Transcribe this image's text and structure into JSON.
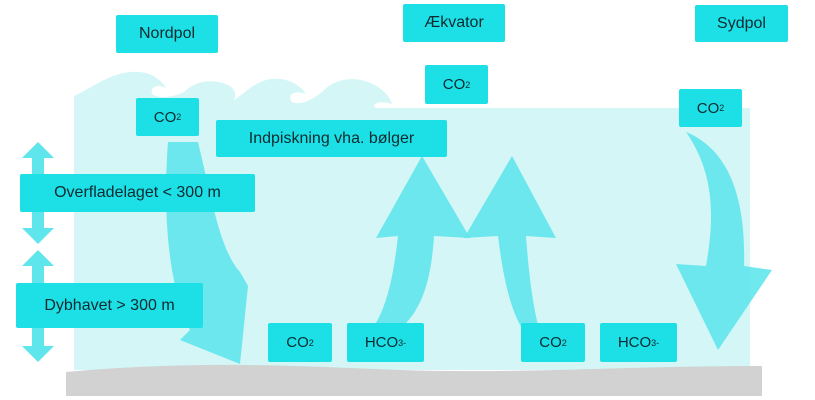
{
  "colors": {
    "water": "#d4f6f6",
    "label_bg": "#1ce0e6",
    "arrow": "#5fe6ec",
    "seabed": "#d2d2d2",
    "text": "#0d2a30"
  },
  "regions": {
    "north_pole": "Nordpol",
    "equator": "Ækvator",
    "south_pole": "Sydpol"
  },
  "labels": {
    "wave_mixing": "Indpiskning vha. bølger",
    "surface_layer": "Overfladelaget < 300 m",
    "deep_sea": "Dybhavet > 300 m"
  },
  "chemistry": {
    "co2_base": "CO",
    "co2_sub": "2",
    "hco3_base": "HCO",
    "hco3_sub": "3",
    "hco3_sup": "-"
  },
  "icons": [
    "double-arrow-icon",
    "wave-icon",
    "flow-arrow-icon"
  ]
}
